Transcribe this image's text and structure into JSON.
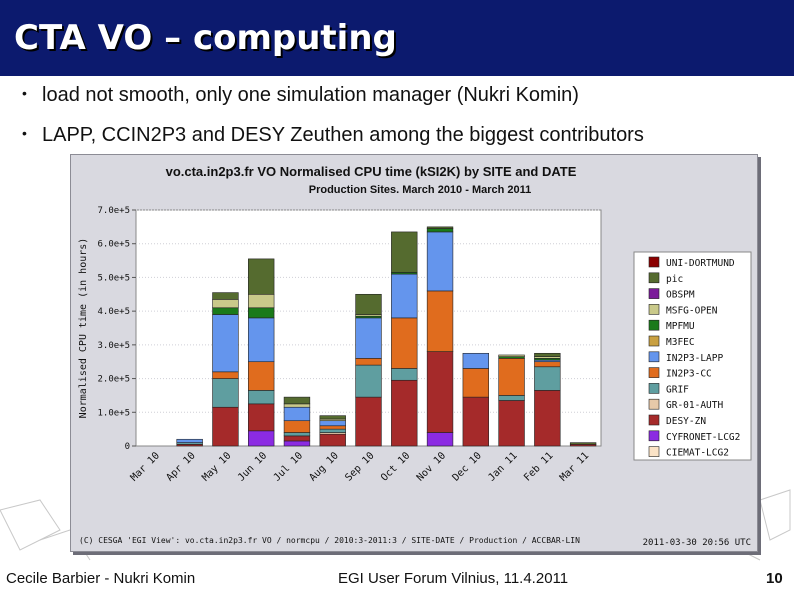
{
  "slide": {
    "title": "CTA VO – computing",
    "bullets": [
      "load not smooth, only one simulation manager (Nukri Komin)",
      "LAPP, CCIN2P3 and DESY Zeuthen among the  biggest contributors"
    ],
    "footer_left": "Cecile Barbier - Nukri Komin",
    "footer_center": "EGI User Forum Vilnius, 11.4.2011",
    "slide_number": "10"
  },
  "chart_data": {
    "type": "bar",
    "stacked": true,
    "title": "vo.cta.in2p3.fr VO  Normalised CPU time (kSI2K) by SITE and DATE",
    "subtitle": "Production Sites. March 2010 - March 2011",
    "ylabel": "Normalised CPU time (in hours)",
    "ylim": [
      0,
      700000
    ],
    "yticks": [
      0,
      100000,
      200000,
      300000,
      400000,
      500000,
      600000,
      700000
    ],
    "ytick_labels": [
      "0",
      "1.0e+5",
      "2.0e+5",
      "3.0e+5",
      "4.0e+5",
      "5.0e+5",
      "6.0e+5",
      "7.0e+5"
    ],
    "categories": [
      "Mar 10",
      "Apr 10",
      "May 10",
      "Jun 10",
      "Jul 10",
      "Aug 10",
      "Sep 10",
      "Oct 10",
      "Nov 10",
      "Dec 10",
      "Jan 11",
      "Feb 11",
      "Mar 11"
    ],
    "grid": true,
    "legend_position": "right",
    "footnote": "(C) CESGA 'EGI View': vo.cta.in2p3.fr VO / normcpu / 2010:3-2011:3 / SITE-DATE / Production / ACCBAR-LIN",
    "timestamp": "2011-03-30 20:56 UTC",
    "series": [
      {
        "name": "CIEMAT-LCG2",
        "color": "#fbe3c6",
        "values": [
          0,
          0,
          0,
          0,
          0,
          0,
          0,
          0,
          0,
          0,
          0,
          0,
          0
        ]
      },
      {
        "name": "CYFRONET-LCG2",
        "color": "#8b2be2",
        "values": [
          0,
          0,
          0,
          45000,
          15000,
          0,
          0,
          0,
          40000,
          0,
          0,
          0,
          0
        ]
      },
      {
        "name": "DESY-ZN",
        "color": "#a52a2a",
        "values": [
          0,
          5000,
          115000,
          80000,
          15000,
          35000,
          145000,
          195000,
          240000,
          145000,
          135000,
          165000,
          5000
        ]
      },
      {
        "name": "GR-01-AUTH",
        "color": "#e7c9a9",
        "values": [
          0,
          0,
          0,
          0,
          0,
          5000,
          0,
          0,
          0,
          0,
          0,
          0,
          0
        ]
      },
      {
        "name": "GRIF",
        "color": "#5f9ea0",
        "values": [
          0,
          5000,
          85000,
          40000,
          10000,
          10000,
          95000,
          35000,
          0,
          0,
          15000,
          70000,
          0
        ]
      },
      {
        "name": "IN2P3-CC",
        "color": "#e06c1e",
        "values": [
          0,
          0,
          20000,
          85000,
          35000,
          10000,
          20000,
          150000,
          180000,
          85000,
          110000,
          15000,
          0
        ]
      },
      {
        "name": "IN2P3-LAPP",
        "color": "#6495ed",
        "values": [
          0,
          10000,
          170000,
          130000,
          40000,
          15000,
          120000,
          130000,
          175000,
          45000,
          0,
          5000,
          0
        ]
      },
      {
        "name": "M3FEC",
        "color": "#c9a041",
        "values": [
          0,
          0,
          0,
          0,
          0,
          0,
          0,
          0,
          0,
          0,
          0,
          0,
          0
        ]
      },
      {
        "name": "MPFMU",
        "color": "#1a7a1a",
        "values": [
          0,
          0,
          20000,
          30000,
          0,
          0,
          5000,
          5000,
          10000,
          0,
          5000,
          5000,
          0
        ]
      },
      {
        "name": "MSFG-OPEN",
        "color": "#c9c98a",
        "values": [
          0,
          0,
          25000,
          40000,
          10000,
          5000,
          5000,
          0,
          0,
          0,
          5000,
          5000,
          0
        ]
      },
      {
        "name": "OBSPM",
        "color": "#7b1a9a",
        "values": [
          0,
          0,
          0,
          0,
          0,
          0,
          0,
          0,
          0,
          0,
          0,
          0,
          0
        ]
      },
      {
        "name": "pic",
        "color": "#556b2f",
        "values": [
          0,
          0,
          20000,
          105000,
          20000,
          10000,
          60000,
          120000,
          5000,
          0,
          0,
          10000,
          5000
        ]
      },
      {
        "name": "UNI-DORTMUND",
        "color": "#8b0000",
        "values": [
          0,
          0,
          0,
          0,
          0,
          0,
          0,
          0,
          0,
          0,
          0,
          0,
          0
        ]
      }
    ],
    "legend_order": [
      "UNI-DORTMUND",
      "pic",
      "OBSPM",
      "MSFG-OPEN",
      "MPFMU",
      "M3FEC",
      "IN2P3-LAPP",
      "IN2P3-CC",
      "GRIF",
      "GR-01-AUTH",
      "DESY-ZN",
      "CYFRONET-LCG2",
      "CIEMAT-LCG2"
    ]
  }
}
